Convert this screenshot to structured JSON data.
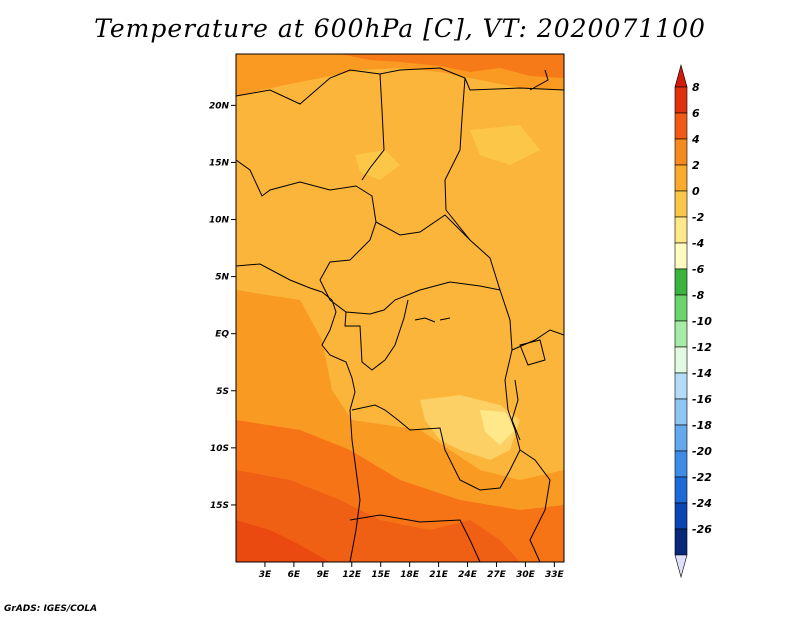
{
  "title": "Temperature at 600hPa [C], VT: 2020071100",
  "credit": "GrADS: IGES/COLA",
  "map": {
    "lon_range": [
      0,
      34
    ],
    "lat_range": [
      -20,
      24.5
    ],
    "lat_labels": [
      "20N",
      "15N",
      "10N",
      "5N",
      "EQ",
      "5S",
      "10S",
      "15S"
    ],
    "lat_values": [
      20,
      15,
      10,
      5,
      0,
      -5,
      -10,
      -15
    ],
    "lon_labels": [
      "3E",
      "6E",
      "9E",
      "12E",
      "15E",
      "18E",
      "21E",
      "24E",
      "27E",
      "30E",
      "33E"
    ],
    "lon_values": [
      3,
      6,
      9,
      12,
      15,
      18,
      21,
      24,
      27,
      30,
      33
    ]
  },
  "colorbar": {
    "labels": [
      "8",
      "6",
      "4",
      "2",
      "0",
      "-2",
      "-4",
      "-6",
      "-8",
      "-10",
      "-12",
      "-14",
      "-16",
      "-18",
      "-20",
      "-22",
      "-24",
      "-26"
    ],
    "colors": [
      "#e03010",
      "#f05a14",
      "#f78a1c",
      "#fbab2c",
      "#fcc748",
      "#fee88a",
      "#fefcc0",
      "#3ab43c",
      "#6cd46c",
      "#a6eca6",
      "#e2fae2",
      "#b4dcf8",
      "#8ec6f4",
      "#64a8ee",
      "#3c8ce8",
      "#1c6ad8",
      "#0a46b4",
      "#08287a"
    ],
    "top_arrow_color": "#d01a0a",
    "bottom_arrow_color": "#e0e0fa"
  }
}
